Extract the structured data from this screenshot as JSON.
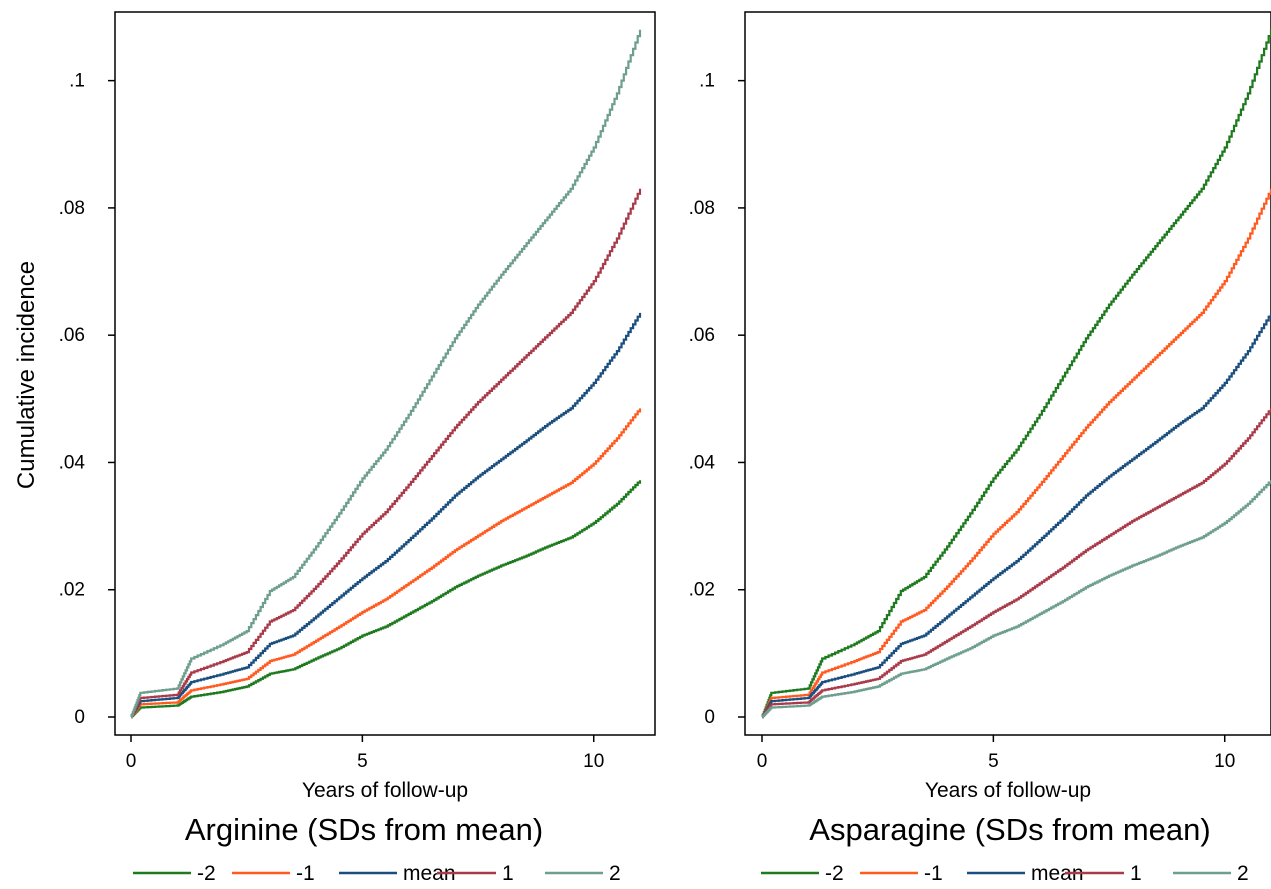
{
  "figure": {
    "ylabel": "Cumulative incidence"
  },
  "chart_data": [
    {
      "type": "line",
      "title": "Arginine (SDs from mean)",
      "xlabel": "Years of follow-up",
      "ylabel": "Cumulative incidence",
      "xlim": [
        0,
        11
      ],
      "ylim": [
        0,
        0.11
      ],
      "xticks": [
        {
          "value": 0,
          "label": "0"
        },
        {
          "value": 5,
          "label": "5"
        },
        {
          "value": 10,
          "label": "10"
        }
      ],
      "yticks": [
        {
          "value": 0,
          "label": "0"
        },
        {
          "value": 0.02,
          "label": ".02"
        },
        {
          "value": 0.04,
          "label": ".04"
        },
        {
          "value": 0.06,
          "label": ".06"
        },
        {
          "value": 0.08,
          "label": ".08"
        },
        {
          "value": 0.1,
          "label": ".1"
        }
      ],
      "grid": false,
      "legend": "bottom",
      "series": [
        {
          "name": "-2",
          "color": "#1e7a1e",
          "x": [
            0,
            0.2,
            1,
            1.3,
            2,
            2.5,
            3,
            3.5,
            4,
            4.5,
            5,
            5.5,
            6,
            6.5,
            7,
            7.5,
            8,
            8.5,
            9,
            9.5,
            10,
            10.5,
            11
          ],
          "y": [
            0,
            0.0015,
            0.0018,
            0.0032,
            0.004,
            0.0048,
            0.0068,
            0.0075,
            0.0092,
            0.0108,
            0.0128,
            0.0142,
            0.0162,
            0.0182,
            0.0204,
            0.0222,
            0.0238,
            0.0252,
            0.0268,
            0.0282,
            0.0305,
            0.0335,
            0.0372
          ]
        },
        {
          "name": "-1",
          "color": "#ff5a1f",
          "x": [
            0,
            0.2,
            1,
            1.3,
            2,
            2.5,
            3,
            3.5,
            4,
            4.5,
            5,
            5.5,
            6,
            6.5,
            7,
            7.5,
            8,
            8.5,
            9,
            9.5,
            10,
            10.5,
            11
          ],
          "y": [
            0,
            0.002,
            0.0023,
            0.0042,
            0.0052,
            0.006,
            0.0088,
            0.0098,
            0.012,
            0.0142,
            0.0165,
            0.0185,
            0.021,
            0.0235,
            0.0262,
            0.0285,
            0.0308,
            0.0328,
            0.0348,
            0.0368,
            0.0398,
            0.0438,
            0.0485
          ]
        },
        {
          "name": "mean",
          "color": "#1a4e7e",
          "x": [
            0,
            0.2,
            1,
            1.3,
            2,
            2.5,
            3,
            3.5,
            4,
            4.5,
            5,
            5.5,
            6,
            6.5,
            7,
            7.5,
            8,
            8.5,
            9,
            9.5,
            10,
            10.5,
            11
          ],
          "y": [
            0,
            0.0025,
            0.003,
            0.0055,
            0.0068,
            0.0078,
            0.0115,
            0.0128,
            0.0158,
            0.0188,
            0.0218,
            0.0245,
            0.0278,
            0.0312,
            0.0348,
            0.0378,
            0.0405,
            0.0432,
            0.046,
            0.0485,
            0.0525,
            0.0575,
            0.0635
          ]
        },
        {
          "name": "1",
          "color": "#a83a4a",
          "x": [
            0,
            0.2,
            1,
            1.3,
            2,
            2.5,
            3,
            3.5,
            4,
            4.5,
            5,
            5.5,
            6,
            6.5,
            7,
            7.5,
            8,
            8.5,
            9,
            9.5,
            10,
            10.5,
            11
          ],
          "y": [
            0,
            0.003,
            0.0035,
            0.007,
            0.0088,
            0.0102,
            0.015,
            0.0168,
            0.0205,
            0.0245,
            0.0288,
            0.0322,
            0.0365,
            0.041,
            0.0455,
            0.0495,
            0.053,
            0.0565,
            0.06,
            0.0635,
            0.0685,
            0.0752,
            0.083
          ]
        },
        {
          "name": "2",
          "color": "#6e9e8e",
          "x": [
            0,
            0.2,
            1,
            1.3,
            2,
            2.5,
            3,
            3.5,
            4,
            4.5,
            5,
            5.5,
            6,
            6.5,
            7,
            7.5,
            8,
            8.5,
            9,
            9.5,
            10,
            10.5,
            11
          ],
          "y": [
            0,
            0.0038,
            0.0045,
            0.0092,
            0.0115,
            0.0135,
            0.0198,
            0.022,
            0.0268,
            0.032,
            0.0375,
            0.042,
            0.0475,
            0.0535,
            0.0595,
            0.0648,
            0.0695,
            0.074,
            0.0785,
            0.083,
            0.0895,
            0.098,
            0.108
          ]
        }
      ]
    },
    {
      "type": "line",
      "title": "Asparagine (SDs from mean)",
      "xlabel": "Years of follow-up",
      "ylabel": "",
      "xlim": [
        0,
        11
      ],
      "ylim": [
        0,
        0.11
      ],
      "xticks": [
        {
          "value": 0,
          "label": "0"
        },
        {
          "value": 5,
          "label": "5"
        },
        {
          "value": 10,
          "label": "10"
        }
      ],
      "yticks": [
        {
          "value": 0,
          "label": "0"
        },
        {
          "value": 0.02,
          "label": ".02"
        },
        {
          "value": 0.04,
          "label": ".04"
        },
        {
          "value": 0.06,
          "label": ".06"
        },
        {
          "value": 0.08,
          "label": ".08"
        },
        {
          "value": 0.1,
          "label": ".1"
        }
      ],
      "grid": false,
      "legend": "bottom",
      "series": [
        {
          "name": "-2",
          "color": "#1e7a1e",
          "x": [
            0,
            0.2,
            1,
            1.3,
            2,
            2.5,
            3,
            3.5,
            4,
            4.5,
            5,
            5.5,
            6,
            6.5,
            7,
            7.5,
            8,
            8.5,
            9,
            9.5,
            10,
            10.5,
            11
          ],
          "y": [
            0,
            0.0038,
            0.0045,
            0.0092,
            0.0115,
            0.0135,
            0.0198,
            0.022,
            0.0268,
            0.032,
            0.0375,
            0.042,
            0.0475,
            0.0535,
            0.0595,
            0.0648,
            0.0695,
            0.074,
            0.0785,
            0.083,
            0.0895,
            0.098,
            0.108
          ]
        },
        {
          "name": "-1",
          "color": "#ff5a1f",
          "x": [
            0,
            0.2,
            1,
            1.3,
            2,
            2.5,
            3,
            3.5,
            4,
            4.5,
            5,
            5.5,
            6,
            6.5,
            7,
            7.5,
            8,
            8.5,
            9,
            9.5,
            10,
            10.5,
            11
          ],
          "y": [
            0,
            0.003,
            0.0035,
            0.007,
            0.0088,
            0.0102,
            0.015,
            0.0168,
            0.0205,
            0.0245,
            0.0288,
            0.0322,
            0.0365,
            0.041,
            0.0455,
            0.0495,
            0.053,
            0.0565,
            0.06,
            0.0635,
            0.0685,
            0.0752,
            0.083
          ]
        },
        {
          "name": "mean",
          "color": "#1a4e7e",
          "x": [
            0,
            0.2,
            1,
            1.3,
            2,
            2.5,
            3,
            3.5,
            4,
            4.5,
            5,
            5.5,
            6,
            6.5,
            7,
            7.5,
            8,
            8.5,
            9,
            9.5,
            10,
            10.5,
            11
          ],
          "y": [
            0,
            0.0025,
            0.003,
            0.0055,
            0.0068,
            0.0078,
            0.0115,
            0.0128,
            0.0158,
            0.0188,
            0.0218,
            0.0245,
            0.0278,
            0.0312,
            0.0348,
            0.0378,
            0.0405,
            0.0432,
            0.046,
            0.0485,
            0.0525,
            0.0575,
            0.0635
          ]
        },
        {
          "name": "1",
          "color": "#a83a4a",
          "x": [
            0,
            0.2,
            1,
            1.3,
            2,
            2.5,
            3,
            3.5,
            4,
            4.5,
            5,
            5.5,
            6,
            6.5,
            7,
            7.5,
            8,
            8.5,
            9,
            9.5,
            10,
            10.5,
            11
          ],
          "y": [
            0,
            0.002,
            0.0023,
            0.0042,
            0.0052,
            0.006,
            0.0088,
            0.0098,
            0.012,
            0.0142,
            0.0165,
            0.0185,
            0.021,
            0.0235,
            0.0262,
            0.0285,
            0.0308,
            0.0328,
            0.0348,
            0.0368,
            0.0398,
            0.0438,
            0.0485
          ]
        },
        {
          "name": "2",
          "color": "#6e9e8e",
          "x": [
            0,
            0.2,
            1,
            1.3,
            2,
            2.5,
            3,
            3.5,
            4,
            4.5,
            5,
            5.5,
            6,
            6.5,
            7,
            7.5,
            8,
            8.5,
            9,
            9.5,
            10,
            10.5,
            11
          ],
          "y": [
            0,
            0.0015,
            0.0018,
            0.0032,
            0.004,
            0.0048,
            0.0068,
            0.0075,
            0.0092,
            0.0108,
            0.0128,
            0.0142,
            0.0162,
            0.0182,
            0.0204,
            0.0222,
            0.0238,
            0.0252,
            0.0268,
            0.0282,
            0.0305,
            0.0335,
            0.0372
          ]
        }
      ]
    }
  ]
}
